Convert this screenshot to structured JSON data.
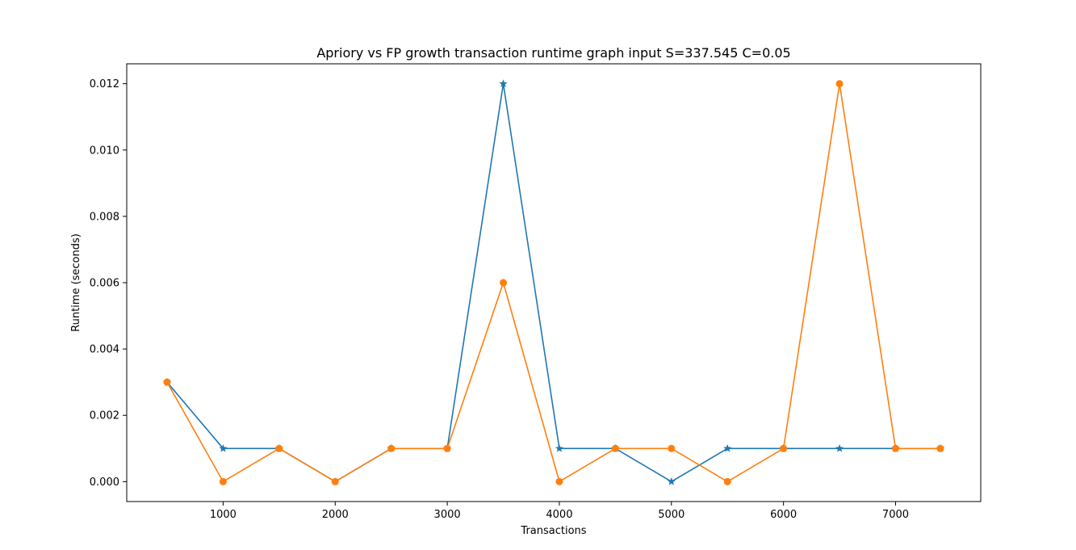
{
  "chart_data": {
    "type": "line",
    "title": "Apriory vs FP growth transaction runtime graph input S=337.545 C=0.05",
    "xlabel": "Transactions",
    "ylabel": "Runtime (seconds)",
    "xlim": [
      140,
      7760
    ],
    "ylim": [
      -0.0006,
      0.0126
    ],
    "xticks": [
      1000,
      2000,
      3000,
      4000,
      5000,
      6000,
      7000
    ],
    "xtick_labels": [
      "1000",
      "2000",
      "3000",
      "4000",
      "5000",
      "6000",
      "7000"
    ],
    "yticks": [
      0.0,
      0.002,
      0.004,
      0.006,
      0.008,
      0.01,
      0.012
    ],
    "ytick_labels": [
      "0.000",
      "0.002",
      "0.004",
      "0.006",
      "0.008",
      "0.010",
      "0.012"
    ],
    "grid": false,
    "x": [
      500,
      1000,
      1500,
      2000,
      2500,
      3000,
      3500,
      4000,
      4500,
      5000,
      5500,
      6000,
      6500,
      7000,
      7400
    ],
    "series": [
      {
        "color": "#1f77b4",
        "marker": "star",
        "values": [
          0.003,
          0.001,
          0.001,
          0.0,
          0.001,
          0.001,
          0.012,
          0.001,
          0.001,
          0.0,
          0.001,
          0.001,
          0.001,
          0.001,
          0.001
        ]
      },
      {
        "color": "#ff7f0e",
        "marker": "circle",
        "values": [
          0.003,
          0.0,
          0.001,
          0.0,
          0.001,
          0.001,
          0.006,
          0.0,
          0.001,
          0.001,
          0.0,
          0.001,
          0.012,
          0.001,
          0.001
        ]
      }
    ]
  }
}
